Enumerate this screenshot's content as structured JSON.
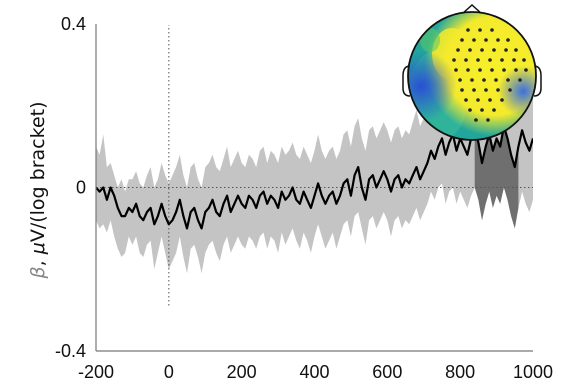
{
  "chart_data": {
    "type": "line",
    "ylabel_parts": {
      "beta": "β",
      "comma": ", ",
      "mu": "μ",
      "rest": "V/(log bracket)"
    },
    "xlim": [
      -200,
      1000
    ],
    "ylim": [
      -0.4,
      0.4
    ],
    "x_ticks": [
      -200,
      0,
      200,
      400,
      600,
      800,
      1000
    ],
    "x_tick_labels": [
      "-200",
      "0",
      "200",
      "400",
      "600",
      "800",
      "1000"
    ],
    "y_ticks": [
      -0.4,
      0,
      0.4
    ],
    "y_tick_labels": [
      "-0.4",
      "0",
      "0.4"
    ],
    "reference_lines": [
      {
        "orientation": "vertical",
        "value": 0,
        "style": "dotted"
      },
      {
        "orientation": "horizontal",
        "value": 0,
        "style": "dotted"
      }
    ],
    "significant_window": [
      840,
      960
    ],
    "inset": "scalp-topography",
    "series": [
      {
        "role": "mean",
        "color": "#000000",
        "x": [
          -200,
          -190,
          -180,
          -170,
          -160,
          -150,
          -140,
          -130,
          -120,
          -110,
          -100,
          -90,
          -80,
          -70,
          -60,
          -50,
          -40,
          -30,
          -20,
          -10,
          0,
          10,
          20,
          30,
          40,
          50,
          60,
          70,
          80,
          90,
          100,
          110,
          120,
          130,
          140,
          150,
          160,
          170,
          180,
          190,
          200,
          210,
          220,
          230,
          240,
          250,
          260,
          270,
          280,
          290,
          300,
          310,
          320,
          330,
          340,
          350,
          360,
          370,
          380,
          390,
          400,
          410,
          420,
          430,
          440,
          450,
          460,
          470,
          480,
          490,
          500,
          510,
          520,
          530,
          540,
          550,
          560,
          570,
          580,
          590,
          600,
          610,
          620,
          630,
          640,
          650,
          660,
          670,
          680,
          690,
          700,
          710,
          720,
          730,
          740,
          750,
          760,
          770,
          780,
          790,
          800,
          810,
          820,
          830,
          840,
          850,
          860,
          870,
          880,
          890,
          900,
          910,
          920,
          930,
          940,
          950,
          960,
          970,
          980,
          990,
          1000
        ],
        "y": [
          0.0,
          -0.01,
          0.0,
          -0.03,
          0.0,
          -0.02,
          -0.05,
          -0.07,
          -0.07,
          -0.05,
          -0.06,
          -0.04,
          -0.07,
          -0.08,
          -0.06,
          -0.05,
          -0.09,
          -0.07,
          -0.04,
          -0.07,
          -0.09,
          -0.08,
          -0.06,
          -0.03,
          -0.07,
          -0.1,
          -0.06,
          -0.05,
          -0.08,
          -0.1,
          -0.06,
          -0.05,
          -0.03,
          -0.06,
          -0.07,
          -0.04,
          -0.02,
          -0.06,
          -0.04,
          -0.02,
          -0.04,
          -0.05,
          -0.02,
          -0.03,
          -0.05,
          -0.02,
          -0.01,
          -0.04,
          -0.02,
          -0.03,
          -0.05,
          -0.01,
          -0.03,
          -0.02,
          0.0,
          -0.03,
          -0.04,
          -0.01,
          -0.03,
          -0.05,
          -0.02,
          0.01,
          -0.02,
          -0.04,
          -0.02,
          -0.01,
          -0.04,
          -0.02,
          0.01,
          0.02,
          -0.02,
          0.03,
          0.05,
          0.0,
          -0.03,
          0.02,
          0.03,
          0.0,
          0.02,
          0.04,
          0.02,
          -0.01,
          0.02,
          0.03,
          0.0,
          0.02,
          0.01,
          0.03,
          0.05,
          0.02,
          0.04,
          0.06,
          0.09,
          0.07,
          0.1,
          0.12,
          0.08,
          0.11,
          0.13,
          0.09,
          0.12,
          0.1,
          0.08,
          0.12,
          0.14,
          0.11,
          0.06,
          0.1,
          0.13,
          0.09,
          0.12,
          0.1,
          0.15,
          0.12,
          0.08,
          0.05,
          0.1,
          0.14,
          0.11,
          0.09,
          0.12
        ]
      },
      {
        "role": "confidence-band",
        "color": "#c4c4c4",
        "x": [
          -200,
          -190,
          -180,
          -170,
          -160,
          -150,
          -140,
          -130,
          -120,
          -110,
          -100,
          -90,
          -80,
          -70,
          -60,
          -50,
          -40,
          -30,
          -20,
          -10,
          0,
          10,
          20,
          30,
          40,
          50,
          60,
          70,
          80,
          90,
          100,
          110,
          120,
          130,
          140,
          150,
          160,
          170,
          180,
          190,
          200,
          210,
          220,
          230,
          240,
          250,
          260,
          270,
          280,
          290,
          300,
          310,
          320,
          330,
          340,
          350,
          360,
          370,
          380,
          390,
          400,
          410,
          420,
          430,
          440,
          450,
          460,
          470,
          480,
          490,
          500,
          510,
          520,
          530,
          540,
          550,
          560,
          570,
          580,
          590,
          600,
          610,
          620,
          630,
          640,
          650,
          660,
          670,
          680,
          690,
          700,
          710,
          720,
          730,
          740,
          750,
          760,
          770,
          780,
          790,
          800,
          810,
          820,
          830,
          840,
          850,
          860,
          870,
          880,
          890,
          900,
          910,
          920,
          930,
          940,
          950,
          960,
          970,
          980,
          990,
          1000
        ],
        "upper": [
          0.1,
          0.08,
          0.13,
          0.05,
          0.06,
          0.03,
          0.0,
          0.02,
          -0.01,
          0.02,
          0.02,
          0.04,
          0.01,
          0.0,
          0.03,
          0.05,
          0.0,
          0.02,
          0.06,
          0.03,
          0.01,
          0.03,
          0.05,
          0.08,
          0.03,
          0.0,
          0.05,
          0.06,
          0.02,
          0.0,
          0.05,
          0.06,
          0.08,
          0.05,
          0.04,
          0.07,
          0.1,
          0.05,
          0.07,
          0.09,
          0.06,
          0.05,
          0.08,
          0.07,
          0.05,
          0.09,
          0.1,
          0.06,
          0.09,
          0.08,
          0.06,
          0.1,
          0.08,
          0.09,
          0.11,
          0.08,
          0.07,
          0.1,
          0.08,
          0.06,
          0.09,
          0.13,
          0.09,
          0.07,
          0.09,
          0.1,
          0.07,
          0.09,
          0.13,
          0.14,
          0.1,
          0.15,
          0.17,
          0.12,
          0.09,
          0.14,
          0.15,
          0.12,
          0.14,
          0.16,
          0.14,
          0.11,
          0.14,
          0.15,
          0.12,
          0.14,
          0.13,
          0.16,
          0.19,
          0.15,
          0.17,
          0.2,
          0.23,
          0.21,
          0.24,
          0.27,
          0.22,
          0.25,
          0.28,
          0.23,
          0.27,
          0.24,
          0.22,
          0.26,
          0.29,
          0.26,
          0.2,
          0.24,
          0.28,
          0.23,
          0.27,
          0.24,
          0.31,
          0.27,
          0.22,
          0.18,
          0.24,
          0.3,
          0.26,
          0.23,
          0.25
        ],
        "lower": [
          -0.08,
          -0.1,
          -0.09,
          -0.11,
          -0.08,
          -0.12,
          -0.15,
          -0.17,
          -0.16,
          -0.12,
          -0.14,
          -0.12,
          -0.16,
          -0.17,
          -0.14,
          -0.13,
          -0.2,
          -0.16,
          -0.12,
          -0.16,
          -0.2,
          -0.18,
          -0.16,
          -0.12,
          -0.17,
          -0.21,
          -0.15,
          -0.14,
          -0.17,
          -0.21,
          -0.16,
          -0.14,
          -0.13,
          -0.16,
          -0.18,
          -0.14,
          -0.12,
          -0.16,
          -0.14,
          -0.12,
          -0.14,
          -0.15,
          -0.12,
          -0.13,
          -0.15,
          -0.12,
          -0.11,
          -0.15,
          -0.12,
          -0.13,
          -0.16,
          -0.11,
          -0.14,
          -0.12,
          -0.1,
          -0.13,
          -0.15,
          -0.11,
          -0.13,
          -0.16,
          -0.12,
          -0.09,
          -0.12,
          -0.15,
          -0.13,
          -0.11,
          -0.15,
          -0.12,
          -0.09,
          -0.08,
          -0.12,
          -0.07,
          -0.06,
          -0.1,
          -0.14,
          -0.08,
          -0.07,
          -0.1,
          -0.08,
          -0.06,
          -0.08,
          -0.12,
          -0.08,
          -0.07,
          -0.1,
          -0.08,
          -0.09,
          -0.07,
          -0.05,
          -0.08,
          -0.06,
          -0.04,
          -0.01,
          -0.03,
          0.0,
          0.01,
          -0.04,
          -0.01,
          0.0,
          -0.04,
          -0.01,
          -0.03,
          -0.05,
          -0.02,
          0.0,
          -0.03,
          -0.08,
          -0.04,
          -0.01,
          -0.05,
          -0.02,
          -0.04,
          0.0,
          -0.03,
          -0.07,
          -0.1,
          -0.05,
          -0.01,
          -0.04,
          -0.06,
          -0.03
        ]
      }
    ]
  }
}
